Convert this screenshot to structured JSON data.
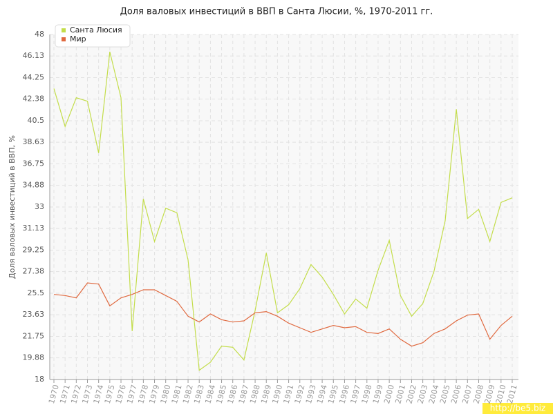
{
  "chart_data": {
    "type": "line",
    "title": "Доля валовых инвестиций в ВВП в Санта Люсии, %, 1970-2011 гг.",
    "y_label": "Доля валовых инвестиций в ВВП, %",
    "watermark": "http://be5.biz",
    "categories": [
      "1970",
      "1971",
      "1972",
      "1973",
      "1974",
      "1975",
      "1976",
      "1977",
      "1978",
      "1979",
      "1980",
      "1981",
      "1982",
      "1983",
      "1984",
      "1985",
      "1986",
      "1987",
      "1988",
      "1989",
      "1990",
      "1991",
      "1992",
      "1993",
      "1994",
      "1995",
      "1996",
      "1997",
      "1998",
      "1999",
      "2000",
      "2001",
      "2002",
      "2003",
      "2004",
      "2005",
      "2006",
      "2007",
      "2008",
      "2009",
      "2010",
      "2011"
    ],
    "series": [
      {
        "name": "Санта Люсия",
        "color": "#c3dd4a",
        "values": [
          43.3,
          40.0,
          42.5,
          42.2,
          37.7,
          46.5,
          42.5,
          22.2,
          33.7,
          30.0,
          32.9,
          32.5,
          28.4,
          18.8,
          19.5,
          20.9,
          20.8,
          19.7,
          24.0,
          29.0,
          23.8,
          24.5,
          25.9,
          28.0,
          26.9,
          25.4,
          23.7,
          25.0,
          24.2,
          27.5,
          30.1,
          25.3,
          23.5,
          24.6,
          27.4,
          31.8,
          41.5,
          32.0,
          32.8,
          30.0,
          33.4,
          33.8
        ]
      },
      {
        "name": "Мир",
        "color": "#e0693f",
        "values": [
          25.4,
          25.3,
          25.1,
          26.4,
          26.3,
          24.4,
          25.1,
          25.4,
          25.8,
          25.8,
          25.3,
          24.8,
          23.5,
          23.0,
          23.7,
          23.2,
          23.0,
          23.1,
          23.8,
          23.9,
          23.5,
          22.9,
          22.5,
          22.1,
          22.4,
          22.7,
          22.5,
          22.6,
          22.1,
          22.0,
          22.4,
          21.5,
          20.9,
          21.2,
          22.0,
          22.4,
          23.1,
          23.6,
          23.7,
          21.5,
          22.7,
          23.5
        ]
      }
    ],
    "ylim": [
      18,
      48
    ],
    "yticks": [
      18,
      19.88,
      21.75,
      23.63,
      25.5,
      27.38,
      29.25,
      31.13,
      33,
      34.88,
      36.75,
      38.63,
      40.5,
      42.38,
      44.25,
      46.13,
      48
    ],
    "grid": true,
    "legend": "top-left"
  }
}
